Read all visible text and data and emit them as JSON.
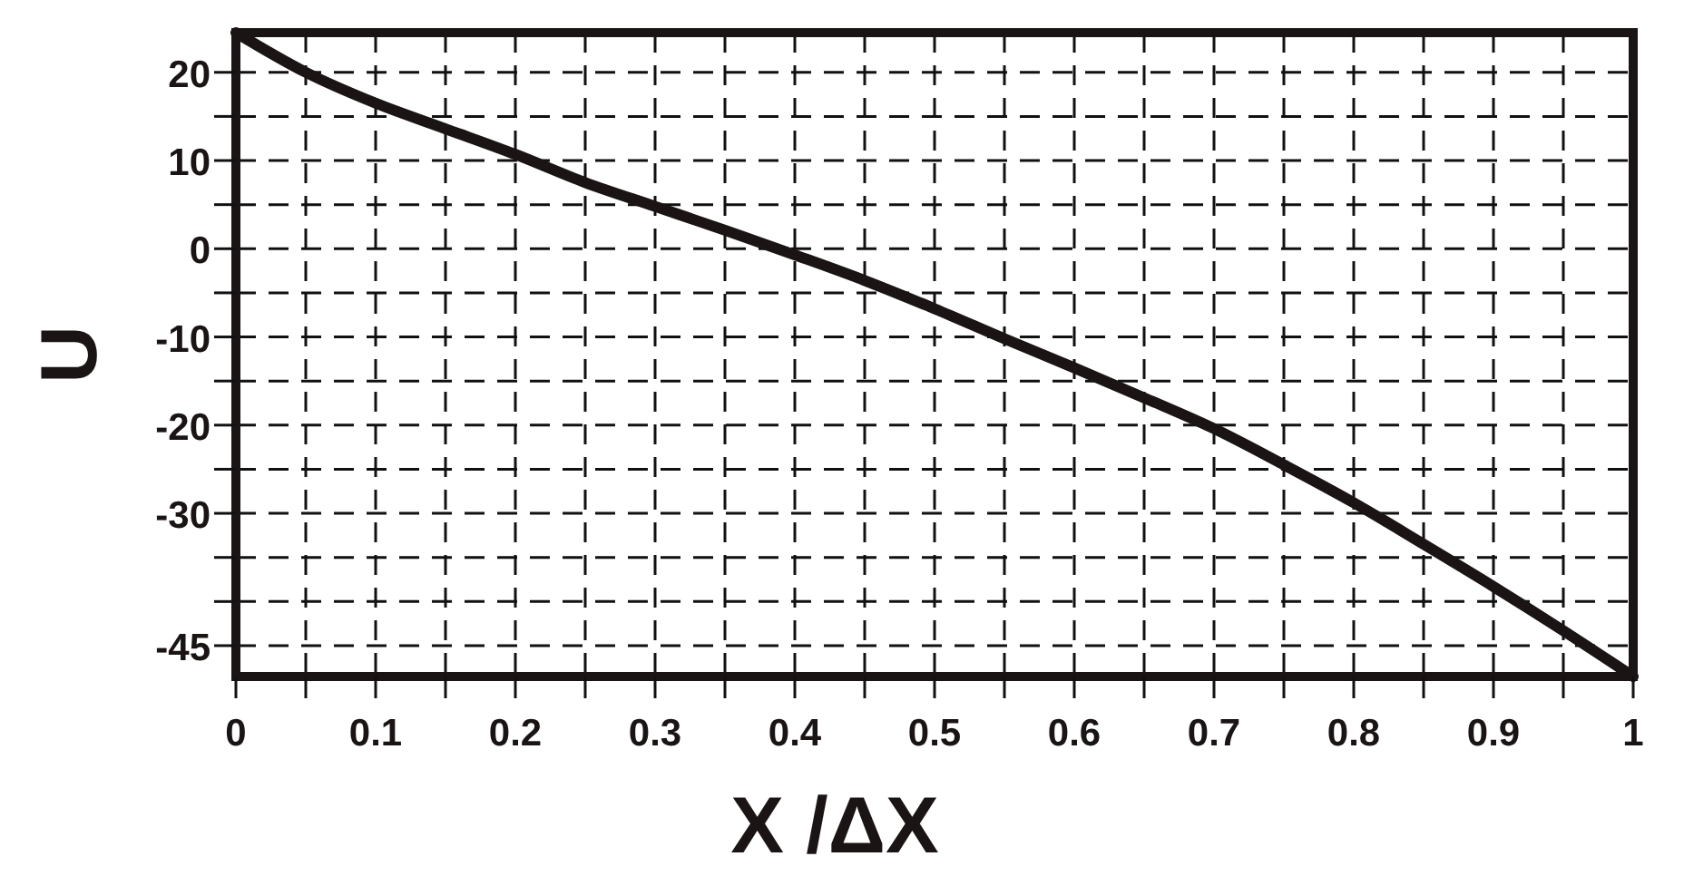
{
  "chart_data": {
    "type": "line",
    "xlabel": "X /ΔX",
    "ylabel": "U",
    "x": [
      0,
      0.05,
      0.1,
      0.15,
      0.2,
      0.25,
      0.3,
      0.35,
      0.4,
      0.45,
      0.5,
      0.55,
      0.6,
      0.65,
      0.7,
      0.75,
      0.8,
      0.85,
      0.9,
      0.95,
      1
    ],
    "series": [
      {
        "color": "#1a1414",
        "values": [
          24.5,
          20,
          16.5,
          13.6,
          10.7,
          7.5,
          4.8,
          2.1,
          -0.7,
          -3.6,
          -6.8,
          -10.2,
          -13.5,
          -16.9,
          -20.4,
          -24.5,
          -28.8,
          -33.5,
          -38.3,
          -43.3,
          -48.5
        ]
      }
    ],
    "xlim": [
      0,
      1
    ],
    "xticks": [
      0,
      {
        "value": 0.05,
        "label": null
      },
      0.1,
      {
        "value": 0.15,
        "label": null
      },
      0.2,
      {
        "value": 0.25,
        "label": null
      },
      0.3,
      {
        "value": 0.35,
        "label": null
      },
      0.4,
      {
        "value": 0.45,
        "label": null
      },
      0.5,
      {
        "value": 0.55,
        "label": null
      },
      0.6,
      {
        "value": 0.65,
        "label": null
      },
      0.7,
      {
        "value": 0.75,
        "label": null
      },
      0.8,
      {
        "value": 0.85,
        "label": null
      },
      0.9,
      {
        "value": 0.95,
        "label": null
      },
      1
    ],
    "ylim": [
      -48.5,
      24.5
    ],
    "yticks": [
      {
        "value": -45,
        "label": "-45"
      },
      {
        "value": -40,
        "label": null
      },
      {
        "value": -35,
        "label": null
      },
      {
        "value": -30,
        "label": "-30"
      },
      {
        "value": -25,
        "label": null
      },
      {
        "value": -20,
        "label": "-20"
      },
      {
        "value": -15,
        "label": null
      },
      {
        "value": -10,
        "label": "-10"
      },
      {
        "value": -5,
        "label": null
      },
      0,
      {
        "value": 5,
        "label": null
      },
      10,
      {
        "value": 15,
        "label": null
      },
      20
    ],
    "grid": true,
    "marker": "none",
    "line_style": "solid"
  }
}
